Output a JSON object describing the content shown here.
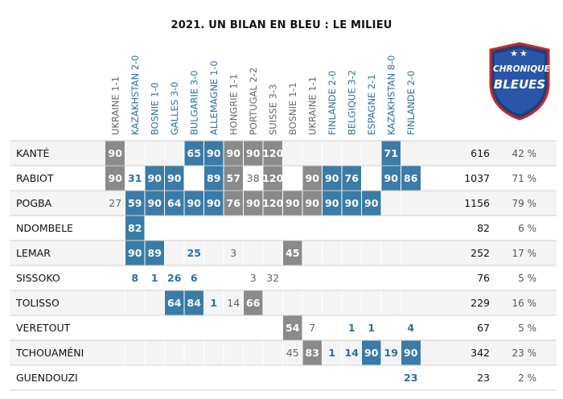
{
  "chart_data": {
    "type": "table",
    "title": "2021. UN BILAN EN BLEU : LE MILIEU",
    "matches": [
      {
        "label": "UKRAINE 1-1",
        "home": false
      },
      {
        "label": "KAZAKHSTAN 2-0",
        "home": true
      },
      {
        "label": "BOSNIE 1-0",
        "home": true
      },
      {
        "label": "GALLES 3-0",
        "home": true
      },
      {
        "label": "BULGARIE 3-0",
        "home": true
      },
      {
        "label": "ALLEMAGNE 1-0",
        "home": true
      },
      {
        "label": "HONGRIE 1-1",
        "home": false
      },
      {
        "label": "PORTUGAL 2-2",
        "home": false
      },
      {
        "label": "SUISSE 3-3",
        "home": false
      },
      {
        "label": "BOSNIE 1-1",
        "home": false
      },
      {
        "label": "UKRAINE 1-1",
        "home": false
      },
      {
        "label": "FINLANDE 2-0",
        "home": true
      },
      {
        "label": "BELGIQUE 3-2",
        "home": true
      },
      {
        "label": "ESPAGNE 2-1",
        "home": true
      },
      {
        "label": "KAZAKHSTAN 8-0",
        "home": true
      },
      {
        "label": "FINLANDE 2-0",
        "home": true
      }
    ],
    "players": [
      {
        "name": "KANTÉ",
        "total": "616",
        "pct": "42 %",
        "cells": [
          [
            90,
            "s"
          ],
          null,
          null,
          null,
          [
            65,
            "s"
          ],
          [
            90,
            "s"
          ],
          [
            90,
            "s"
          ],
          [
            90,
            "s"
          ],
          [
            120,
            "s"
          ],
          null,
          null,
          null,
          null,
          null,
          [
            71,
            "s"
          ],
          null
        ]
      },
      {
        "name": "RABIOT",
        "total": "1037",
        "pct": "71 %",
        "cells": [
          [
            90,
            "s"
          ],
          [
            31,
            "b"
          ],
          [
            90,
            "s"
          ],
          [
            90,
            "s"
          ],
          null,
          [
            89,
            "s"
          ],
          [
            57,
            "s"
          ],
          [
            38,
            "b"
          ],
          [
            120,
            "s"
          ],
          null,
          [
            90,
            "s"
          ],
          [
            90,
            "s"
          ],
          [
            76,
            "s"
          ],
          null,
          [
            90,
            "s"
          ],
          [
            86,
            "s"
          ]
        ]
      },
      {
        "name": "POGBA",
        "total": "1156",
        "pct": "79 %",
        "cells": [
          [
            27,
            "b"
          ],
          [
            59,
            "s"
          ],
          [
            90,
            "s"
          ],
          [
            64,
            "s"
          ],
          [
            90,
            "s"
          ],
          [
            90,
            "s"
          ],
          [
            76,
            "s"
          ],
          [
            90,
            "s"
          ],
          [
            120,
            "s"
          ],
          [
            90,
            "s"
          ],
          [
            90,
            "s"
          ],
          [
            90,
            "s"
          ],
          [
            90,
            "s"
          ],
          [
            90,
            "s"
          ],
          null,
          null
        ]
      },
      {
        "name": "NDOMBELE",
        "total": "82",
        "pct": "6 %",
        "cells": [
          null,
          [
            82,
            "s"
          ],
          null,
          null,
          null,
          null,
          null,
          null,
          null,
          null,
          null,
          null,
          null,
          null,
          null,
          null
        ]
      },
      {
        "name": "LEMAR",
        "total": "252",
        "pct": "17 %",
        "cells": [
          null,
          [
            90,
            "s"
          ],
          [
            89,
            "s"
          ],
          null,
          [
            25,
            "b"
          ],
          null,
          [
            3,
            "b"
          ],
          null,
          null,
          [
            45,
            "s"
          ],
          null,
          null,
          null,
          null,
          null,
          null
        ]
      },
      {
        "name": "SISSOKO",
        "total": "76",
        "pct": "5 %",
        "cells": [
          null,
          [
            8,
            "b"
          ],
          [
            1,
            "b"
          ],
          [
            26,
            "b"
          ],
          [
            6,
            "b"
          ],
          null,
          null,
          [
            3,
            "b"
          ],
          [
            32,
            "b"
          ],
          null,
          null,
          null,
          null,
          null,
          null,
          null
        ]
      },
      {
        "name": "TOLISSO",
        "total": "229",
        "pct": "16 %",
        "cells": [
          null,
          null,
          null,
          [
            64,
            "s"
          ],
          [
            84,
            "s"
          ],
          [
            1,
            "b"
          ],
          [
            14,
            "b"
          ],
          [
            66,
            "s"
          ],
          null,
          null,
          null,
          null,
          null,
          null,
          null,
          null
        ]
      },
      {
        "name": "VERETOUT",
        "total": "67",
        "pct": "5 %",
        "cells": [
          null,
          null,
          null,
          null,
          null,
          null,
          null,
          null,
          null,
          [
            54,
            "s"
          ],
          [
            7,
            "b"
          ],
          null,
          [
            1,
            "b"
          ],
          [
            1,
            "b"
          ],
          null,
          [
            4,
            "b"
          ]
        ]
      },
      {
        "name": "TCHOUAMÉNI",
        "total": "342",
        "pct": "23 %",
        "cells": [
          null,
          null,
          null,
          null,
          null,
          null,
          null,
          null,
          null,
          [
            45,
            "b"
          ],
          [
            83,
            "s"
          ],
          [
            1,
            "b"
          ],
          [
            14,
            "b"
          ],
          [
            90,
            "s"
          ],
          [
            19,
            "b"
          ],
          [
            90,
            "s"
          ]
        ]
      },
      {
        "name": "GUENDOUZI",
        "total": "23",
        "pct": "2 %",
        "cells": [
          null,
          null,
          null,
          null,
          null,
          null,
          null,
          null,
          null,
          null,
          null,
          null,
          null,
          null,
          null,
          [
            23,
            "b"
          ]
        ]
      }
    ],
    "colors": {
      "home": "#3a7ba8",
      "away": "#8a8a8a",
      "home_text": "#2e6f9e",
      "away_text": "#666666",
      "text": "#111111",
      "grid": "#cfcfcf",
      "alt_row": "#f4f4f4"
    }
  },
  "logo": {
    "line1": "CHRONIQUES",
    "line2": "BLEUES",
    "stars": "★★"
  }
}
